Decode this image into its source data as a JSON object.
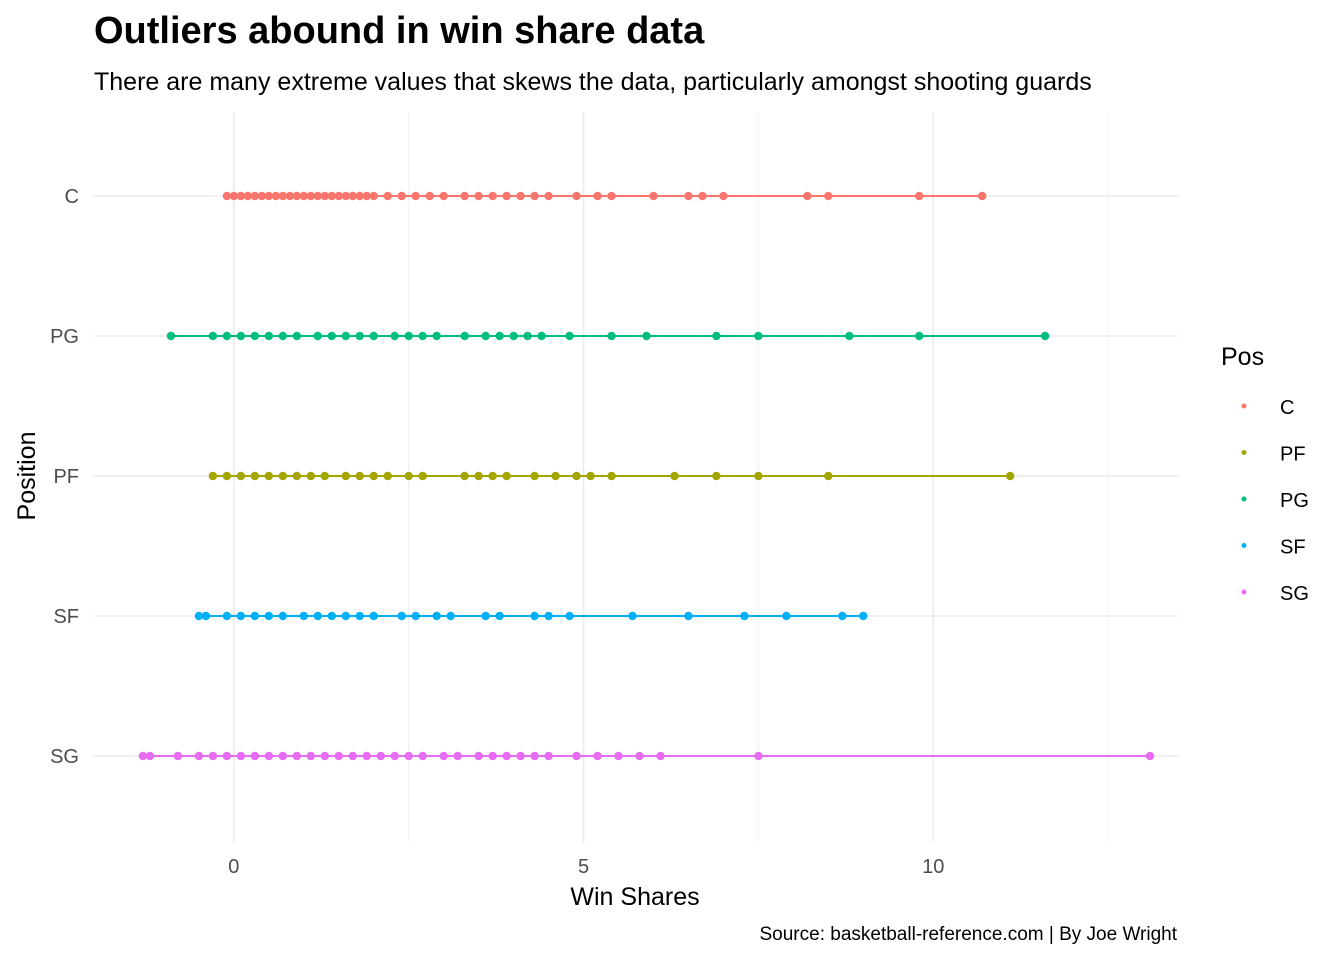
{
  "chart_data": {
    "type": "scatter",
    "title": "Outliers abound in win share data",
    "subtitle": "There are many extreme values that skews the data, particularly amongst shooting guards",
    "caption": "Source: basketball-reference.com | By Joe Wright",
    "xlabel": "Win Shares",
    "ylabel": "Position",
    "xlim": [
      -2,
      13.5
    ],
    "x_ticks": [
      0,
      5,
      10
    ],
    "categories": [
      "C",
      "PG",
      "PF",
      "SF",
      "SG"
    ],
    "grid": true,
    "legend": {
      "title": "Pos",
      "placement": "right",
      "entries": [
        "C",
        "PF",
        "PG",
        "SF",
        "SG"
      ]
    },
    "colors": {
      "C": "#F8766D",
      "PF": "#A3A500",
      "PG": "#00BF7D",
      "SF": "#00B0F6",
      "SG": "#E76BF3"
    },
    "series": [
      {
        "name": "C",
        "values": [
          -0.1,
          0.0,
          0.1,
          0.2,
          0.3,
          0.4,
          0.5,
          0.6,
          0.7,
          0.8,
          0.9,
          1.0,
          1.1,
          1.2,
          1.3,
          1.4,
          1.5,
          1.6,
          1.7,
          1.8,
          1.9,
          2.0,
          2.2,
          2.4,
          2.6,
          2.8,
          3.0,
          3.3,
          3.5,
          3.7,
          3.9,
          4.1,
          4.3,
          4.5,
          4.9,
          5.2,
          5.4,
          6.0,
          6.5,
          6.7,
          7.0,
          8.2,
          8.5,
          9.8,
          10.7
        ]
      },
      {
        "name": "PG",
        "values": [
          -0.9,
          -0.3,
          -0.1,
          0.1,
          0.3,
          0.5,
          0.7,
          0.9,
          1.2,
          1.4,
          1.6,
          1.8,
          2.0,
          2.3,
          2.5,
          2.7,
          2.9,
          3.3,
          3.6,
          3.8,
          4.0,
          4.2,
          4.4,
          4.8,
          5.4,
          5.9,
          6.9,
          7.5,
          8.8,
          9.8,
          11.6
        ]
      },
      {
        "name": "PF",
        "values": [
          -0.3,
          -0.1,
          0.1,
          0.3,
          0.5,
          0.7,
          0.9,
          1.1,
          1.3,
          1.6,
          1.8,
          2.0,
          2.2,
          2.5,
          2.7,
          3.3,
          3.5,
          3.7,
          3.9,
          4.3,
          4.6,
          4.9,
          5.1,
          5.4,
          6.3,
          6.9,
          7.5,
          8.5,
          11.1
        ]
      },
      {
        "name": "SF",
        "values": [
          -0.5,
          -0.4,
          -0.1,
          0.1,
          0.3,
          0.5,
          0.7,
          1.0,
          1.2,
          1.4,
          1.6,
          1.8,
          2.0,
          2.4,
          2.6,
          2.9,
          3.1,
          3.6,
          3.8,
          4.3,
          4.5,
          4.8,
          5.7,
          6.5,
          7.3,
          7.9,
          8.7,
          9.0
        ]
      },
      {
        "name": "SG",
        "values": [
          -1.3,
          -1.2,
          -0.8,
          -0.5,
          -0.3,
          -0.1,
          0.1,
          0.3,
          0.5,
          0.7,
          0.9,
          1.1,
          1.3,
          1.5,
          1.7,
          1.9,
          2.1,
          2.3,
          2.5,
          2.7,
          3.0,
          3.2,
          3.5,
          3.7,
          3.9,
          4.1,
          4.3,
          4.5,
          4.9,
          5.2,
          5.5,
          5.8,
          6.1,
          7.5,
          13.1
        ]
      }
    ]
  }
}
